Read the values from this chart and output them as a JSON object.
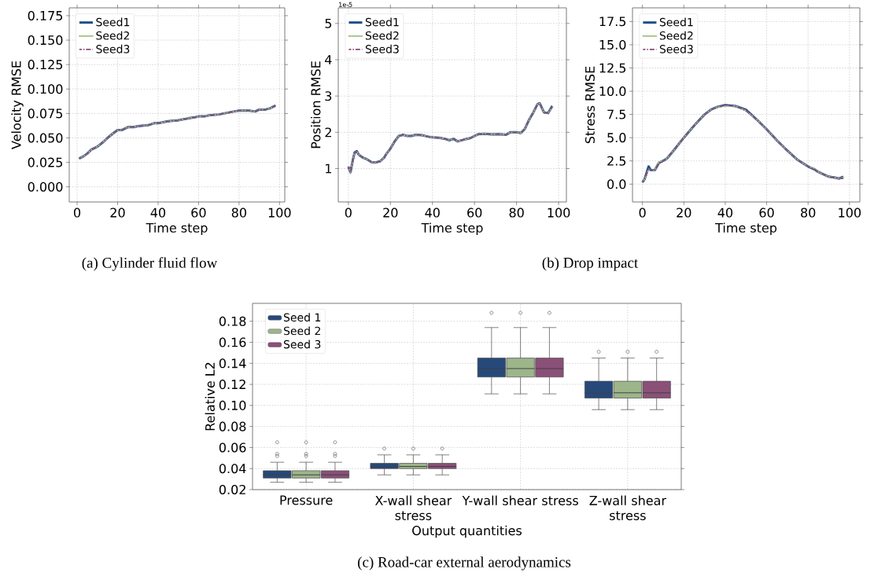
{
  "chart_data": [
    {
      "type": "line",
      "xlabel": "Time step",
      "ylabel": "Velocity RMSE",
      "grid": true,
      "legend": "top left",
      "xlim": [
        -3.9,
        102.6
      ],
      "ylim": [
        -0.0155,
        0.183
      ],
      "xticks": [
        0,
        20,
        40,
        60,
        80,
        100
      ],
      "yticks": [
        {
          "value": 0,
          "label": "0.000"
        },
        0.025,
        {
          "value": 0.05,
          "label": "0.050"
        },
        0.075,
        {
          "value": 0.1,
          "label": "0.100"
        },
        0.125,
        {
          "value": 0.15,
          "label": "0.150"
        },
        0.175
      ],
      "x": [
        1,
        3,
        5,
        7,
        10,
        13,
        15,
        18,
        20,
        22,
        25,
        28,
        30,
        35,
        38,
        40,
        45,
        50,
        55,
        58,
        60,
        63,
        65,
        70,
        75,
        80,
        85,
        88,
        90,
        93,
        95,
        98
      ],
      "series": [
        {
          "name": "Seed1",
          "color": "#1f4e8a",
          "line_style": "solid",
          "values": [
            0.029,
            0.031,
            0.034,
            0.038,
            0.041,
            0.046,
            0.05,
            0.055,
            0.058,
            0.058,
            0.061,
            0.061,
            0.062,
            0.063,
            0.065,
            0.065,
            0.067,
            0.068,
            0.07,
            0.071,
            0.072,
            0.072,
            0.073,
            0.074,
            0.076,
            0.078,
            0.078,
            0.077,
            0.079,
            0.079,
            0.08,
            0.083
          ]
        },
        {
          "name": "Seed2",
          "color": "#9dc183",
          "line_style": "dashed",
          "values": [
            0.029,
            0.031,
            0.034,
            0.038,
            0.041,
            0.046,
            0.05,
            0.055,
            0.058,
            0.058,
            0.061,
            0.061,
            0.062,
            0.063,
            0.065,
            0.065,
            0.067,
            0.068,
            0.07,
            0.071,
            0.072,
            0.072,
            0.073,
            0.074,
            0.076,
            0.078,
            0.078,
            0.077,
            0.079,
            0.079,
            0.08,
            0.083
          ]
        },
        {
          "name": "Seed3",
          "color": "#8b4b7e",
          "line_style": "dashdot",
          "values": [
            0.029,
            0.031,
            0.034,
            0.038,
            0.041,
            0.046,
            0.05,
            0.055,
            0.058,
            0.058,
            0.061,
            0.061,
            0.062,
            0.063,
            0.065,
            0.065,
            0.067,
            0.068,
            0.07,
            0.071,
            0.072,
            0.072,
            0.073,
            0.074,
            0.076,
            0.078,
            0.078,
            0.077,
            0.079,
            0.079,
            0.08,
            0.083
          ]
        }
      ],
      "annotations": [
        "(a) Cylinder fluid flow"
      ]
    },
    {
      "type": "line",
      "xlabel": "Time step",
      "ylabel": "Position RMSE",
      "grid": true,
      "legend": "top left",
      "xlim": [
        -4.8,
        103.7
      ],
      "ylim": [
        0.08,
        5.43
      ],
      "xticks": [
        0,
        20,
        40,
        60,
        80,
        100
      ],
      "yticks": [
        1,
        2,
        3,
        4,
        5
      ],
      "x": [
        0,
        1,
        2,
        3,
        4,
        5,
        7,
        9,
        11,
        13,
        15,
        17,
        18,
        20,
        22,
        24,
        26,
        28,
        30,
        32,
        35,
        38,
        40,
        43,
        46,
        48,
        50,
        52,
        55,
        58,
        60,
        62,
        65,
        68,
        72,
        75,
        77,
        80,
        82,
        84,
        86,
        88,
        90,
        91,
        93,
        95,
        97
      ],
      "series": [
        {
          "name": "Seed1",
          "color": "#1f4e8a",
          "line_style": "solid",
          "values": [
            1.05,
            0.9,
            1.2,
            1.45,
            1.48,
            1.38,
            1.3,
            1.25,
            1.18,
            1.17,
            1.2,
            1.3,
            1.4,
            1.55,
            1.75,
            1.9,
            1.93,
            1.9,
            1.9,
            1.93,
            1.92,
            1.88,
            1.86,
            1.85,
            1.82,
            1.78,
            1.82,
            1.75,
            1.8,
            1.84,
            1.9,
            1.95,
            1.96,
            1.94,
            1.95,
            1.93,
            2.0,
            2.0,
            1.98,
            2.1,
            2.35,
            2.55,
            2.78,
            2.8,
            2.55,
            2.53,
            2.73
          ]
        },
        {
          "name": "Seed2",
          "color": "#9dc183",
          "line_style": "dashed",
          "values": [
            1.05,
            0.9,
            1.2,
            1.45,
            1.48,
            1.38,
            1.3,
            1.25,
            1.18,
            1.17,
            1.2,
            1.3,
            1.4,
            1.55,
            1.75,
            1.9,
            1.93,
            1.9,
            1.9,
            1.93,
            1.92,
            1.88,
            1.86,
            1.85,
            1.82,
            1.78,
            1.82,
            1.75,
            1.8,
            1.84,
            1.9,
            1.95,
            1.96,
            1.94,
            1.95,
            1.93,
            2.0,
            2.0,
            1.98,
            2.1,
            2.35,
            2.55,
            2.78,
            2.8,
            2.55,
            2.53,
            2.7
          ]
        },
        {
          "name": "Seed3",
          "color": "#8b4b7e",
          "line_style": "dashdot",
          "values": [
            1.05,
            0.9,
            1.2,
            1.45,
            1.48,
            1.38,
            1.3,
            1.25,
            1.18,
            1.17,
            1.2,
            1.3,
            1.4,
            1.55,
            1.75,
            1.9,
            1.93,
            1.9,
            1.9,
            1.93,
            1.92,
            1.88,
            1.86,
            1.85,
            1.82,
            1.78,
            1.82,
            1.75,
            1.8,
            1.84,
            1.9,
            1.95,
            1.96,
            1.94,
            1.95,
            1.93,
            2.0,
            2.0,
            1.98,
            2.1,
            2.35,
            2.55,
            2.78,
            2.8,
            2.55,
            2.53,
            2.7
          ]
        }
      ],
      "annotations": [
        "1e-5",
        "(b) Drop impact"
      ]
    },
    {
      "type": "line",
      "xlabel": "Time step",
      "ylabel": "Stress RMSE",
      "grid": true,
      "legend": "top left",
      "xlim": [
        -4.8,
        105
      ],
      "ylim": [
        -1.92,
        18.97
      ],
      "xticks": [
        0,
        20,
        40,
        60,
        80,
        100
      ],
      "yticks": [
        {
          "value": 0,
          "label": "0.0"
        },
        2.5,
        {
          "value": 5,
          "label": "5.0"
        },
        7.5,
        {
          "value": 10,
          "label": "10.0"
        },
        12.5,
        {
          "value": 15,
          "label": "15.0"
        },
        17.5
      ],
      "x": [
        0,
        1,
        3,
        4,
        6,
        8,
        10,
        12,
        15,
        20,
        25,
        30,
        33,
        36,
        40,
        45,
        50,
        55,
        60,
        65,
        70,
        75,
        80,
        83,
        85,
        90,
        93,
        95,
        97
      ],
      "series": [
        {
          "name": "Seed1",
          "color": "#1f4e8a",
          "line_style": "solid",
          "values": [
            0.2,
            0.5,
            1.9,
            1.5,
            1.5,
            2.3,
            2.5,
            2.8,
            3.6,
            5.0,
            6.3,
            7.5,
            8.0,
            8.3,
            8.5,
            8.4,
            8.0,
            7.0,
            5.9,
            4.7,
            3.6,
            2.6,
            1.9,
            1.6,
            1.3,
            0.8,
            0.7,
            0.6,
            0.8
          ]
        },
        {
          "name": "Seed2",
          "color": "#9dc183",
          "line_style": "dashed",
          "values": [
            0.2,
            0.5,
            1.6,
            1.5,
            1.5,
            2.4,
            2.5,
            2.8,
            3.6,
            5.0,
            6.3,
            7.5,
            8.0,
            8.3,
            8.4,
            8.4,
            7.9,
            7.0,
            5.9,
            4.7,
            3.6,
            2.6,
            1.9,
            1.7,
            1.3,
            0.8,
            0.7,
            0.6,
            0.7
          ]
        },
        {
          "name": "Seed3",
          "color": "#8b4b7e",
          "line_style": "dashdot",
          "values": [
            0.2,
            0.5,
            1.7,
            1.5,
            1.5,
            2.3,
            2.5,
            2.8,
            3.6,
            5.0,
            6.3,
            7.5,
            8.0,
            8.3,
            8.5,
            8.4,
            7.9,
            7.0,
            5.9,
            4.7,
            3.6,
            2.6,
            1.9,
            1.6,
            1.3,
            0.8,
            0.7,
            0.6,
            0.6
          ]
        }
      ]
    },
    {
      "type": "box",
      "xlabel": "Output quantities",
      "ylabel": "Relative L2",
      "grid": true,
      "legend": "top left",
      "ylim": [
        0.02,
        0.197
      ],
      "yticks": [
        0.02,
        0.04,
        0.06,
        0.08,
        {
          "value": 0.1,
          "label": "0.10"
        },
        0.12,
        0.14,
        0.16,
        0.18
      ],
      "categories": [
        "Pressure",
        "X-wall shear stress",
        "Y-wall shear stress",
        "Z-wall shear stress"
      ],
      "series": [
        {
          "name": "Seed 1",
          "color": "#26497a",
          "boxes": [
            {
              "low": 0.027,
              "q1": 0.031,
              "median": 0.034,
              "q3": 0.038,
              "high": 0.046,
              "outliers": [
                0.052,
                0.054,
                0.065
              ]
            },
            {
              "low": 0.034,
              "q1": 0.04,
              "median": 0.042,
              "q3": 0.045,
              "high": 0.053,
              "outliers": [
                0.059
              ]
            },
            {
              "low": 0.111,
              "q1": 0.127,
              "median": 0.135,
              "q3": 0.145,
              "high": 0.174,
              "outliers": [
                0.188
              ]
            },
            {
              "low": 0.096,
              "q1": 0.107,
              "median": 0.112,
              "q3": 0.123,
              "high": 0.145,
              "outliers": [
                0.151
              ]
            }
          ]
        },
        {
          "name": "Seed 2",
          "color": "#9cb58a",
          "boxes": [
            {
              "low": 0.027,
              "q1": 0.031,
              "median": 0.034,
              "q3": 0.038,
              "high": 0.046,
              "outliers": [
                0.052,
                0.054,
                0.065
              ]
            },
            {
              "low": 0.034,
              "q1": 0.04,
              "median": 0.042,
              "q3": 0.045,
              "high": 0.053,
              "outliers": [
                0.059
              ]
            },
            {
              "low": 0.111,
              "q1": 0.127,
              "median": 0.135,
              "q3": 0.145,
              "high": 0.174,
              "outliers": [
                0.188
              ]
            },
            {
              "low": 0.096,
              "q1": 0.107,
              "median": 0.112,
              "q3": 0.123,
              "high": 0.145,
              "outliers": [
                0.151
              ]
            }
          ]
        },
        {
          "name": "Seed 3",
          "color": "#8a5078",
          "boxes": [
            {
              "low": 0.027,
              "q1": 0.031,
              "median": 0.034,
              "q3": 0.038,
              "high": 0.046,
              "outliers": [
                0.052,
                0.054,
                0.065
              ]
            },
            {
              "low": 0.034,
              "q1": 0.04,
              "median": 0.042,
              "q3": 0.045,
              "high": 0.053,
              "outliers": [
                0.059
              ]
            },
            {
              "low": 0.111,
              "q1": 0.127,
              "median": 0.135,
              "q3": 0.145,
              "high": 0.174,
              "outliers": [
                0.188
              ]
            },
            {
              "low": 0.096,
              "q1": 0.107,
              "median": 0.112,
              "q3": 0.123,
              "high": 0.145,
              "outliers": [
                0.151
              ]
            }
          ]
        }
      ],
      "annotations": [
        "(c) Road-car external aerodynamics"
      ]
    }
  ]
}
